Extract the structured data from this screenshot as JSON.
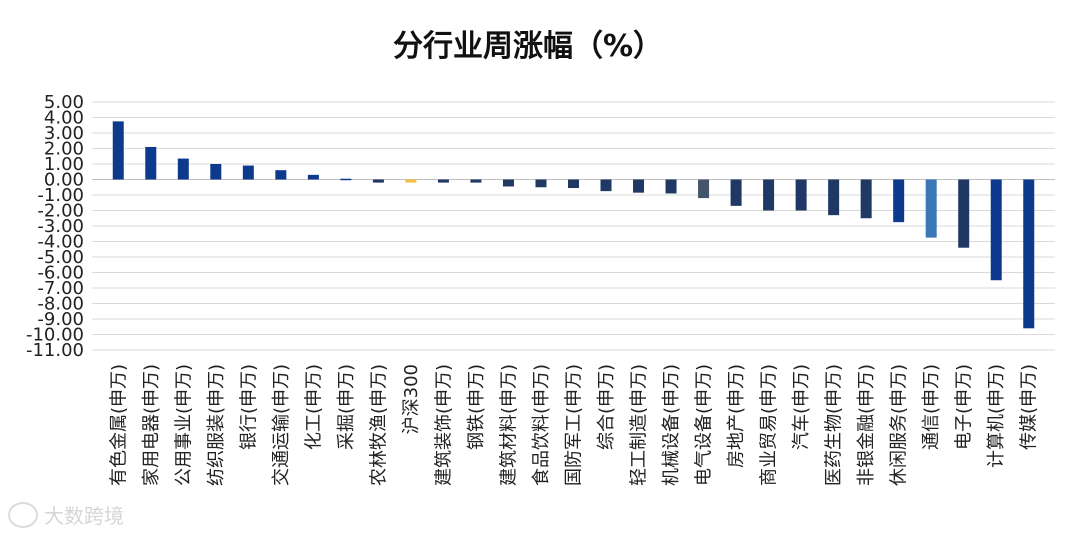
{
  "chart_data": {
    "type": "bar",
    "title": "分行业周涨幅（%）",
    "ylim": [
      -11,
      5
    ],
    "yticks": [
      "5.00",
      "4.00",
      "3.00",
      "2.00",
      "1.00",
      "0.00",
      "-1.00",
      "-2.00",
      "-3.00",
      "-4.00",
      "-5.00",
      "-6.00",
      "-7.00",
      "-8.00",
      "-9.00",
      "-10.00",
      "-11.00"
    ],
    "grid": true,
    "legend": "none",
    "categories": [
      "有色金属(申万)",
      "家用电器(申万)",
      "公用事业(申万)",
      "纺织服装(申万)",
      "银行(申万)",
      "交通运输(申万)",
      "化工(申万)",
      "采掘(申万)",
      "农林牧渔(申万)",
      "沪深300",
      "建筑装饰(申万)",
      "钢铁(申万)",
      "建筑材料(申万)",
      "食品饮料(申万)",
      "国防军工(申万)",
      "综合(申万)",
      "轻工制造(申万)",
      "机械设备(申万)",
      "电气设备(申万)",
      "房地产(申万)",
      "商业贸易(申万)",
      "汽车(申万)",
      "医药生物(申万)",
      "非银金融(申万)",
      "休闲服务(申万)",
      "通信(申万)",
      "电子(申万)",
      "计算机(申万)",
      "传媒(申万)"
    ],
    "values": [
      3.75,
      2.1,
      1.35,
      1.0,
      0.9,
      0.6,
      0.3,
      0.05,
      -0.2,
      -0.2,
      -0.2,
      -0.2,
      -0.45,
      -0.5,
      -0.55,
      -0.75,
      -0.85,
      -0.9,
      -1.2,
      -1.7,
      -2.0,
      -2.0,
      -2.3,
      -2.5,
      -2.75,
      -3.75,
      -4.4,
      -6.5,
      -9.6
    ],
    "colors": [
      "#0d3a8c",
      "#0d3a8c",
      "#0d3a8c",
      "#0d3a8c",
      "#0d3a8c",
      "#0d3a8c",
      "#0d3a8c",
      "#0d3a8c",
      "#1f3864",
      "#f5c040",
      "#1f3864",
      "#1f3864",
      "#1f3864",
      "#1f3864",
      "#1f3864",
      "#1f3864",
      "#1f3864",
      "#1f3864",
      "#44546a",
      "#1f3864",
      "#1f3864",
      "#1f3864",
      "#1f3864",
      "#1f3864",
      "#0d3a8c",
      "#3a78b5",
      "#1f3864",
      "#0d3a8c",
      "#0d3a8c"
    ]
  },
  "watermark": "大数跨境"
}
